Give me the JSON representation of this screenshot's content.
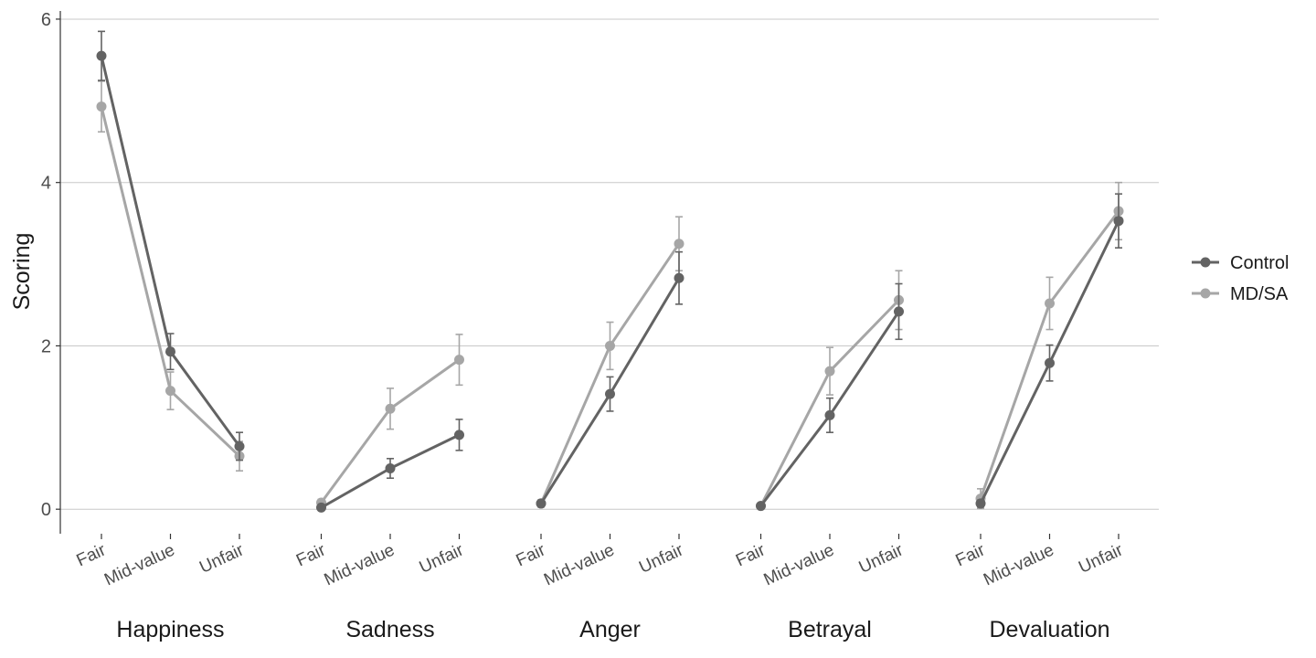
{
  "chart_data": {
    "type": "line",
    "ylabel": "Scoring",
    "xlabel": "",
    "ylim": [
      -0.3,
      6.1
    ],
    "yticks": [
      0,
      2,
      4,
      6
    ],
    "grid": "horizontal major lines",
    "legend_position": "right",
    "groups": [
      "Happiness",
      "Sadness",
      "Anger",
      "Betrayal",
      "Devaluation"
    ],
    "categories": [
      "Fair",
      "Mid-value",
      "Unfair"
    ],
    "series": [
      {
        "name": "Control",
        "color": "#636363",
        "values": [
          [
            5.55,
            1.93,
            0.77
          ],
          [
            0.02,
            0.5,
            0.91
          ],
          [
            0.07,
            1.41,
            2.83
          ],
          [
            0.04,
            1.15,
            2.42
          ],
          [
            0.07,
            1.79,
            3.53
          ]
        ],
        "errors": [
          [
            0.3,
            0.22,
            0.17
          ],
          [
            0.03,
            0.12,
            0.19
          ],
          [
            0.04,
            0.21,
            0.32
          ],
          [
            0.02,
            0.21,
            0.34
          ],
          [
            0.04,
            0.22,
            0.33
          ]
        ]
      },
      {
        "name": "MD/SA",
        "color": "#a6a6a6",
        "values": [
          [
            4.93,
            1.45,
            0.65
          ],
          [
            0.08,
            1.23,
            1.83
          ],
          [
            0.07,
            2.0,
            3.25
          ],
          [
            0.04,
            1.69,
            2.56
          ],
          [
            0.13,
            2.52,
            3.65
          ]
        ],
        "errors": [
          [
            0.31,
            0.23,
            0.18
          ],
          [
            0.04,
            0.25,
            0.31
          ],
          [
            0.04,
            0.29,
            0.33
          ],
          [
            0.02,
            0.29,
            0.36
          ],
          [
            0.12,
            0.32,
            0.35
          ]
        ]
      }
    ]
  }
}
